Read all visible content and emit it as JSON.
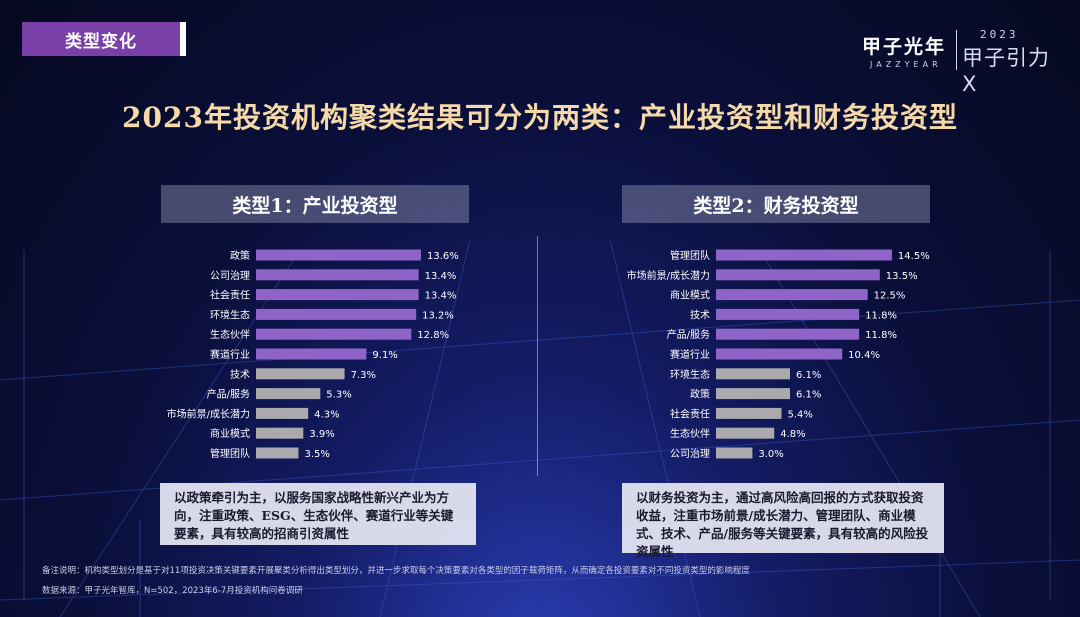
{
  "tag": "类型变化",
  "logo": {
    "name": "甲子光年",
    "sub": "JAZZYEAR",
    "year": "2023",
    "event": "甲子引力X"
  },
  "title": "2023年投资机构聚类结果可分为两类：产业投资型和财务投资型",
  "colors": {
    "highlight": "#8f64c8",
    "normal": "#a9a9ae",
    "title": "#f6d9a8"
  },
  "chart_data": [
    {
      "type": "bar",
      "orientation": "horizontal",
      "title": "类型1：产业投资型",
      "categories": [
        "政策",
        "公司治理",
        "社会责任",
        "环境生态",
        "生态伙伴",
        "赛道行业",
        "技术",
        "产品/服务",
        "市场前景/成长潜力",
        "商业模式",
        "管理团队"
      ],
      "values": [
        13.6,
        13.4,
        13.4,
        13.2,
        12.8,
        9.1,
        7.3,
        5.3,
        4.3,
        3.9,
        3.5
      ],
      "labels": [
        "13.6%",
        "13.4%",
        "13.4%",
        "13.2%",
        "12.8%",
        "9.1%",
        "7.3%",
        "5.3%",
        "4.3%",
        "3.9%",
        "3.5%"
      ],
      "highlighted_count": 6,
      "xlim": [
        0,
        15
      ]
    },
    {
      "type": "bar",
      "orientation": "horizontal",
      "title": "类型2：财务投资型",
      "categories": [
        "管理团队",
        "市场前景/成长潜力",
        "商业模式",
        "技术",
        "产品/服务",
        "赛道行业",
        "环境生态",
        "政策",
        "社会责任",
        "生态伙伴",
        "公司治理"
      ],
      "values": [
        14.5,
        13.5,
        12.5,
        11.8,
        11.8,
        10.4,
        6.1,
        6.1,
        5.4,
        4.8,
        3.0
      ],
      "labels": [
        "14.5%",
        "13.5%",
        "12.5%",
        "11.8%",
        "11.8%",
        "10.4%",
        "6.1%",
        "6.1%",
        "5.4%",
        "4.8%",
        "3.0%"
      ],
      "highlighted_count": 6,
      "xlim": [
        0,
        15
      ]
    }
  ],
  "descriptions": [
    "以政策牵引为主，以服务国家战略性新兴产业为方向，注重政策、ESG、生态伙伴、赛道行业等关键要素，具有较高的招商引资属性",
    "以财务投资为主，通过高风险高回报的方式获取投资收益，注重市场前景/成长潜力、管理团队、商业模式、技术、产品/服务等关键要素，具有较高的风险投资属性"
  ],
  "footnotes": [
    "备注说明：机构类型划分是基于对11项投资决策关键要素开展聚类分析得出类型划分，并进一步求取每个决策要素对各类型的因子载荷矩阵，从而确定各投资要素对不同投资类型的影响程度",
    "数据来源：甲子光年智库，N=502，2023年6-7月投资机构问卷调研"
  ]
}
